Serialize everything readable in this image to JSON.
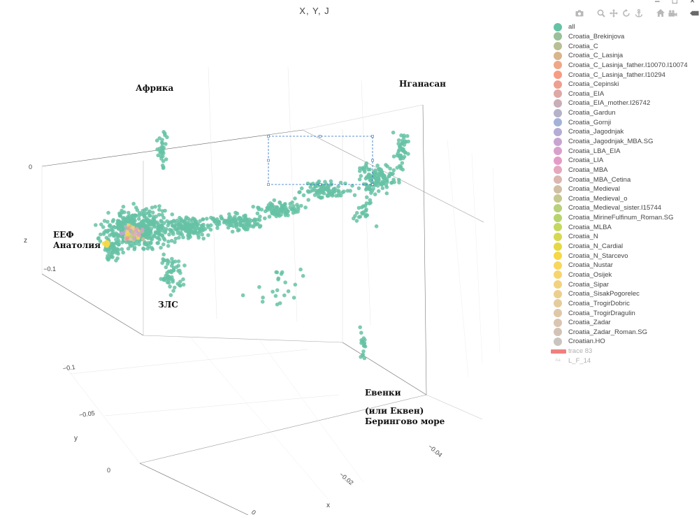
{
  "window": {
    "minimize": "–",
    "maximize": "□",
    "close": "×"
  },
  "chart_data": {
    "type": "scatter",
    "title": "X, Y, J",
    "projection": "3d",
    "axes": {
      "x": {
        "label": "x",
        "ticks": [
          "−0.04",
          "−0.02",
          "0"
        ]
      },
      "y": {
        "label": "y",
        "ticks": [
          "−0.1",
          "−0.05",
          "0"
        ]
      },
      "z": {
        "label": "z",
        "ticks": [
          "0",
          "−0.1"
        ]
      }
    },
    "annotations": [
      {
        "id": "afrika",
        "text": "Африка"
      },
      {
        "id": "nganasan",
        "text": "Нганасан"
      },
      {
        "id": "eef",
        "text": "ЕЕФ"
      },
      {
        "id": "anatolia",
        "text": "Анатолия"
      },
      {
        "id": "zls",
        "text": "ЗЛС"
      },
      {
        "id": "evenki",
        "text": "Евенки"
      },
      {
        "id": "ekven",
        "text": "(или Еквен)"
      },
      {
        "id": "bering",
        "text": "Берингово море"
      }
    ],
    "legend_position": "right",
    "series": [
      {
        "name": "all",
        "color": "#66c2a5"
      },
      {
        "name": "Croatia_Brekinjova",
        "color": "#99c09a"
      },
      {
        "name": "Croatia_C",
        "color": "#b9bf95"
      },
      {
        "name": "Croatia_C_Lasinja",
        "color": "#d8b58c"
      },
      {
        "name": "Croatia_C_Lasinja_father.I10070.I10074",
        "color": "#efa787"
      },
      {
        "name": "Croatia_C_Lasinja_father.I10294",
        "color": "#f69c84"
      },
      {
        "name": "Croatia_Cepinski",
        "color": "#ed9f90"
      },
      {
        "name": "Croatia_EIA",
        "color": "#dea8a5"
      },
      {
        "name": "Croatia_EIA_mother.I26742",
        "color": "#c9adb8"
      },
      {
        "name": "Croatia_Gardun",
        "color": "#b5b1c9"
      },
      {
        "name": "Croatia_Gornji",
        "color": "#a3b2d6"
      },
      {
        "name": "Croatia_Jagodnjak",
        "color": "#b7acd4"
      },
      {
        "name": "Croatia_Jagodnjak_MBA.SG",
        "color": "#c9a4d0"
      },
      {
        "name": "Croatia_LBA_EIA",
        "color": "#d9a0cc"
      },
      {
        "name": "Croatia_LIA",
        "color": "#e49cc6"
      },
      {
        "name": "Croatia_MBA",
        "color": "#e5a8bf"
      },
      {
        "name": "Croatia_MBA_Cetina",
        "color": "#dcb6b0"
      },
      {
        "name": "Croatia_Medieval",
        "color": "#d0bfa3"
      },
      {
        "name": "Croatia_Medieval_o",
        "color": "#c6c890"
      },
      {
        "name": "Croatia_Medieval_sister.I15744",
        "color": "#b9d07c"
      },
      {
        "name": "Croatia_MirineFulfinum_Roman.SG",
        "color": "#b7d46b"
      },
      {
        "name": "Croatia_MLBA",
        "color": "#c5d75f"
      },
      {
        "name": "Croatia_N",
        "color": "#d6d852"
      },
      {
        "name": "Croatia_N_Cardial",
        "color": "#e5d845"
      },
      {
        "name": "Croatia_N_Starcevo",
        "color": "#f6d846"
      },
      {
        "name": "Croatia_Nustar",
        "color": "#f9d75c"
      },
      {
        "name": "Croatia_Osijek",
        "color": "#f6d56f"
      },
      {
        "name": "Croatia_Sipar",
        "color": "#f1d27f"
      },
      {
        "name": "Croatia_SisakPogorelec",
        "color": "#ebcf8f"
      },
      {
        "name": "Croatia_TrogirDobric",
        "color": "#e5cc9d"
      },
      {
        "name": "Croatia_TrogirDragulin",
        "color": "#dfc8a8"
      },
      {
        "name": "Croatia_Zadar",
        "color": "#d9c5b1"
      },
      {
        "name": "Croatia_Zadar_Roman.SG",
        "color": "#d3c3b7"
      },
      {
        "name": "Croatian.HO",
        "color": "#c9c4bf"
      },
      {
        "name": "trace 83",
        "color": "#f08080",
        "marker": "bar",
        "faded": true
      },
      {
        "name": "L_F_14",
        "color": "#cccccc",
        "marker": "text",
        "faded": true
      }
    ],
    "clusters": [
      {
        "x": -0.008,
        "y": -0.075,
        "z": -0.02,
        "spread": 0.09,
        "count": 520
      }
    ]
  },
  "modebar": {
    "buttons": [
      "camera-icon",
      "zoom-icon",
      "pan-icon",
      "orbit-icon",
      "turntable-icon",
      "home-icon",
      "video-icon",
      "hover-icon",
      "plotly-logo-icon"
    ]
  }
}
